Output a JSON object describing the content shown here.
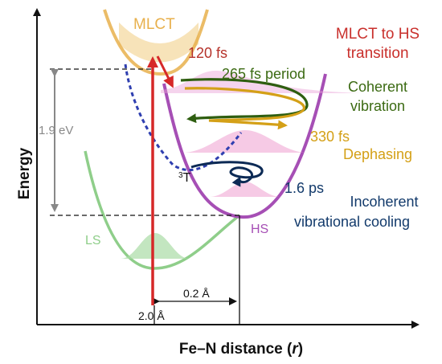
{
  "axes": {
    "y_label": "Energy",
    "x_label_prefix": "Fe–N distance (",
    "x_label_var": "r",
    "x_label_suffix": ")"
  },
  "curves": {
    "mlct": "MLCT",
    "ls": "LS",
    "hs": "HS",
    "triplet_sup": "3",
    "triplet": "T"
  },
  "measures": {
    "energy_gap": "1.9 eV",
    "bond_change": "0.2 Å",
    "bond_ls": "2.0 Å"
  },
  "annotations": {
    "t_120": "120 fs",
    "period": "265 fs period",
    "t_330": "330 fs",
    "t_1_6": "1.6 ps",
    "mlct_hs_line1": "MLCT to HS",
    "mlct_hs_line2": "transition",
    "coherent_line1": "Coherent",
    "coherent_line2": "vibration",
    "dephasing": "Dephasing",
    "incoherent_line1": "Incoherent",
    "incoherent_line2": "vibrational cooling"
  },
  "colors": {
    "mlct": "#e8b04c",
    "ls": "#8fce8a",
    "hs": "#a64fb5",
    "triplet": "#2f3fb0",
    "excitation": "#d62828",
    "coherent": "#4a7a1a",
    "dephasing": "#d4a017",
    "incoherent": "#123a6b"
  }
}
